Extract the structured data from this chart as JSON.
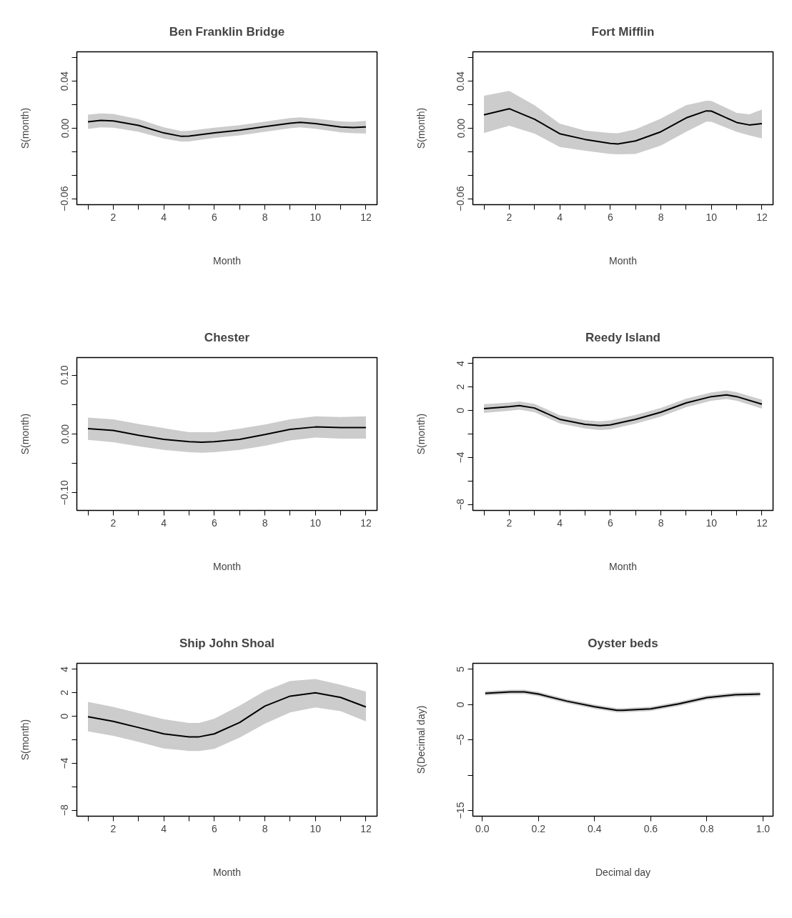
{
  "chart_data": [
    {
      "type": "line",
      "title": "Ben Franklin Bridge",
      "xlabel": "Month",
      "ylabel": "S(month)",
      "xlim": [
        0.56,
        12.44
      ],
      "ylim": [
        -0.065,
        0.065
      ],
      "xticks": [
        {
          "value": 1,
          "label": null
        },
        2,
        {
          "value": 3,
          "label": null
        },
        4,
        {
          "value": 5,
          "label": null
        },
        6,
        {
          "value": 7,
          "label": null
        },
        8,
        {
          "value": 9,
          "label": null
        },
        10,
        {
          "value": 11,
          "label": null
        },
        12
      ],
      "yticks": [
        {
          "value": -0.06,
          "label": "−0.06"
        },
        {
          "value": -0.04,
          "label": null
        },
        {
          "value": -0.02,
          "label": null
        },
        {
          "value": 0,
          "label": "0.00"
        },
        {
          "value": 0.02,
          "label": null
        },
        0.04,
        {
          "value": 0.06,
          "label": null
        }
      ],
      "x": [
        1,
        1.5,
        2,
        3,
        4,
        4.7,
        5,
        6,
        7,
        8,
        9,
        9.4,
        10,
        11,
        11.5,
        12
      ],
      "series": [
        {
          "color": "#000000",
          "values": [
            0.0054,
            0.0067,
            0.0062,
            0.0024,
            -0.004,
            -0.0069,
            -0.0067,
            -0.0039,
            -0.0017,
            0.0013,
            0.0043,
            0.005,
            0.0039,
            0.0011,
            0.0006,
            0.0011
          ],
          "lower": [
            -0.0006,
            0.0008,
            0.0005,
            -0.003,
            -0.0088,
            -0.0114,
            -0.0112,
            -0.0082,
            -0.006,
            -0.003,
            0,
            0.0007,
            -0.0004,
            -0.0035,
            -0.0042,
            -0.0045
          ],
          "upper": [
            0.0116,
            0.0126,
            0.0122,
            0.0078,
            0.0008,
            -0.0024,
            -0.0022,
            0.0004,
            0.0026,
            0.0056,
            0.0086,
            0.0093,
            0.0082,
            0.0057,
            0.0054,
            0.0063
          ]
        }
      ]
    },
    {
      "type": "line",
      "title": "Fort Mifflin",
      "xlabel": "Month",
      "ylabel": "S(month)",
      "xlim": [
        0.56,
        12.44
      ],
      "ylim": [
        -0.065,
        0.065
      ],
      "xticks": [
        {
          "value": 1,
          "label": null
        },
        2,
        {
          "value": 3,
          "label": null
        },
        4,
        {
          "value": 5,
          "label": null
        },
        6,
        {
          "value": 7,
          "label": null
        },
        8,
        {
          "value": 9,
          "label": null
        },
        10,
        {
          "value": 11,
          "label": null
        },
        12
      ],
      "yticks": [
        {
          "value": -0.06,
          "label": "−0.06"
        },
        {
          "value": -0.04,
          "label": null
        },
        {
          "value": -0.02,
          "label": null
        },
        {
          "value": 0,
          "label": "0.00"
        },
        {
          "value": 0.02,
          "label": null
        },
        0.04,
        {
          "value": 0.06,
          "label": null
        }
      ],
      "x": [
        1,
        2,
        3,
        4,
        5,
        6,
        6.3,
        7,
        8,
        9,
        9.8,
        10,
        11,
        11.5,
        12
      ],
      "series": [
        {
          "color": "#000000",
          "values": [
            0.0114,
            0.0166,
            0.0077,
            -0.0047,
            -0.0095,
            -0.0129,
            -0.0133,
            -0.0108,
            -0.003,
            0.0088,
            0.0148,
            0.0146,
            0.0049,
            0.0028,
            0.0039
          ],
          "lower": [
            -0.0041,
            0.0022,
            -0.0045,
            -0.0159,
            -0.0191,
            -0.0219,
            -0.0222,
            -0.0219,
            -0.0148,
            -0.003,
            0.0056,
            0.0055,
            -0.003,
            -0.006,
            -0.0086
          ],
          "upper": [
            0.0277,
            0.0317,
            0.0196,
            0.0039,
            -0.0019,
            -0.0041,
            -0.0042,
            -0.0009,
            0.0082,
            0.0196,
            0.0234,
            0.0233,
            0.0131,
            0.0118,
            0.0159
          ]
        }
      ]
    },
    {
      "type": "line",
      "title": "Chester",
      "xlabel": "Month",
      "ylabel": "S(month)",
      "xlim": [
        0.56,
        12.44
      ],
      "ylim": [
        -0.13,
        0.13
      ],
      "xticks": [
        {
          "value": 1,
          "label": null
        },
        2,
        {
          "value": 3,
          "label": null
        },
        4,
        {
          "value": 5,
          "label": null
        },
        6,
        {
          "value": 7,
          "label": null
        },
        8,
        {
          "value": 9,
          "label": null
        },
        10,
        {
          "value": 11,
          "label": null
        },
        12
      ],
      "yticks": [
        {
          "value": -0.1,
          "label": "−0.10"
        },
        {
          "value": -0.05,
          "label": null
        },
        {
          "value": 0,
          "label": "0.00"
        },
        {
          "value": 0.05,
          "label": null
        },
        {
          "value": 0.1,
          "label": "0.10"
        }
      ],
      "x": [
        1,
        2,
        3,
        4,
        5,
        5.5,
        6,
        7,
        8,
        9,
        10,
        11,
        12
      ],
      "series": [
        {
          "color": "#000000",
          "values": [
            0.009,
            0.006,
            -0.002,
            -0.009,
            -0.013,
            -0.014,
            -0.013,
            -0.009,
            -0.001,
            0.008,
            0.012,
            0.011,
            0.011
          ],
          "lower": [
            -0.01,
            -0.014,
            -0.021,
            -0.027,
            -0.031,
            -0.032,
            -0.031,
            -0.027,
            -0.02,
            -0.011,
            -0.006,
            -0.008,
            -0.008
          ],
          "upper": [
            0.028,
            0.025,
            0.017,
            0.01,
            0.003,
            0.003,
            0.003,
            0.009,
            0.016,
            0.025,
            0.03,
            0.029,
            0.03
          ]
        }
      ]
    },
    {
      "type": "line",
      "title": "Reedy Island",
      "xlabel": "Month",
      "ylabel": "S(month)",
      "xlim": [
        0.56,
        12.44
      ],
      "ylim": [
        -8.5,
        4.5
      ],
      "xticks": [
        {
          "value": 1,
          "label": null
        },
        2,
        {
          "value": 3,
          "label": null
        },
        4,
        {
          "value": 5,
          "label": null
        },
        6,
        {
          "value": 7,
          "label": null
        },
        8,
        {
          "value": 9,
          "label": null
        },
        10,
        {
          "value": 11,
          "label": null
        },
        12
      ],
      "yticks": [
        {
          "value": -8,
          "label": "−8"
        },
        {
          "value": -6,
          "label": null
        },
        {
          "value": -4,
          "label": "−4"
        },
        {
          "value": -2,
          "label": null
        },
        0,
        2,
        4
      ],
      "x": [
        1,
        2,
        2.4,
        3,
        4,
        5,
        5.6,
        6,
        7,
        8,
        9,
        10,
        10.6,
        11,
        12
      ],
      "series": [
        {
          "color": "#000000",
          "values": [
            0.15,
            0.32,
            0.41,
            0.21,
            -0.75,
            -1.18,
            -1.29,
            -1.22,
            -0.75,
            -0.15,
            0.64,
            1.18,
            1.33,
            1.18,
            0.54
          ],
          "lower": [
            -0.21,
            -0.03,
            0.06,
            -0.14,
            -1.1,
            -1.53,
            -1.66,
            -1.6,
            -1.12,
            -0.52,
            0.28,
            0.82,
            0.97,
            0.82,
            0.15
          ],
          "upper": [
            0.54,
            0.68,
            0.77,
            0.57,
            -0.4,
            -0.83,
            -0.92,
            -0.84,
            -0.38,
            0.22,
            1.0,
            1.54,
            1.7,
            1.55,
            0.92
          ]
        }
      ]
    },
    {
      "type": "line",
      "title": "Ship John Shoal",
      "xlabel": "Month",
      "ylabel": "S(month)",
      "xlim": [
        0.56,
        12.44
      ],
      "ylim": [
        -8.5,
        4.5
      ],
      "xticks": [
        {
          "value": 1,
          "label": null
        },
        2,
        {
          "value": 3,
          "label": null
        },
        4,
        {
          "value": 5,
          "label": null
        },
        6,
        {
          "value": 7,
          "label": null
        },
        8,
        {
          "value": 9,
          "label": null
        },
        10,
        {
          "value": 11,
          "label": null
        },
        12
      ],
      "yticks": [
        {
          "value": -8,
          "label": "−8"
        },
        {
          "value": -6,
          "label": null
        },
        {
          "value": -4,
          "label": "−4"
        },
        {
          "value": -2,
          "label": null
        },
        0,
        2,
        4
      ],
      "x": [
        1,
        2,
        3,
        4,
        5,
        5.4,
        6,
        7,
        8,
        9,
        10,
        11,
        12
      ],
      "series": [
        {
          "color": "#000000",
          "values": [
            -0.04,
            -0.43,
            -0.96,
            -1.5,
            -1.75,
            -1.75,
            -1.5,
            -0.53,
            0.86,
            1.71,
            1.99,
            1.6,
            0.79
          ],
          "lower": [
            -1.28,
            -1.66,
            -2.18,
            -2.74,
            -2.95,
            -2.95,
            -2.78,
            -1.82,
            -0.64,
            0.32,
            0.75,
            0.43,
            -0.43
          ],
          "upper": [
            1.22,
            0.79,
            0.26,
            -0.26,
            -0.58,
            -0.58,
            -0.21,
            0.9,
            2.14,
            2.99,
            3.17,
            2.67,
            2.1
          ]
        }
      ]
    },
    {
      "type": "line",
      "title": "Oyster beds",
      "xlabel": "Decimal day",
      "ylabel": "S(Decimal day)",
      "xlim": [
        -0.034,
        1.036
      ],
      "ylim": [
        -15.8,
        5.85
      ],
      "xticks": [
        {
          "value": 0,
          "label": "0.0"
        },
        0.2,
        0.4,
        0.6,
        0.8,
        {
          "value": 1,
          "label": "1.0"
        }
      ],
      "yticks": [
        {
          "value": -15,
          "label": "−15"
        },
        {
          "value": -10,
          "label": null
        },
        {
          "value": -5,
          "label": "−5"
        },
        0,
        5
      ],
      "x": [
        0.01,
        0.1,
        0.15,
        0.2,
        0.3,
        0.4,
        0.48,
        0.5,
        0.6,
        0.7,
        0.8,
        0.9,
        0.99
      ],
      "series": [
        {
          "color": "#000000",
          "values": [
            1.6,
            1.8,
            1.8,
            1.5,
            0.5,
            -0.3,
            -0.8,
            -0.8,
            -0.6,
            0.1,
            1.0,
            1.4,
            1.5
          ],
          "lower": [
            1.3,
            1.5,
            1.5,
            1.2,
            0.2,
            -0.6,
            -1.1,
            -1.1,
            -0.9,
            -0.2,
            0.7,
            1.1,
            1.2
          ],
          "upper": [
            1.9,
            2.1,
            2.1,
            1.8,
            0.8,
            0.0,
            -0.5,
            -0.5,
            -0.3,
            0.4,
            1.3,
            1.7,
            1.8
          ]
        }
      ]
    }
  ]
}
